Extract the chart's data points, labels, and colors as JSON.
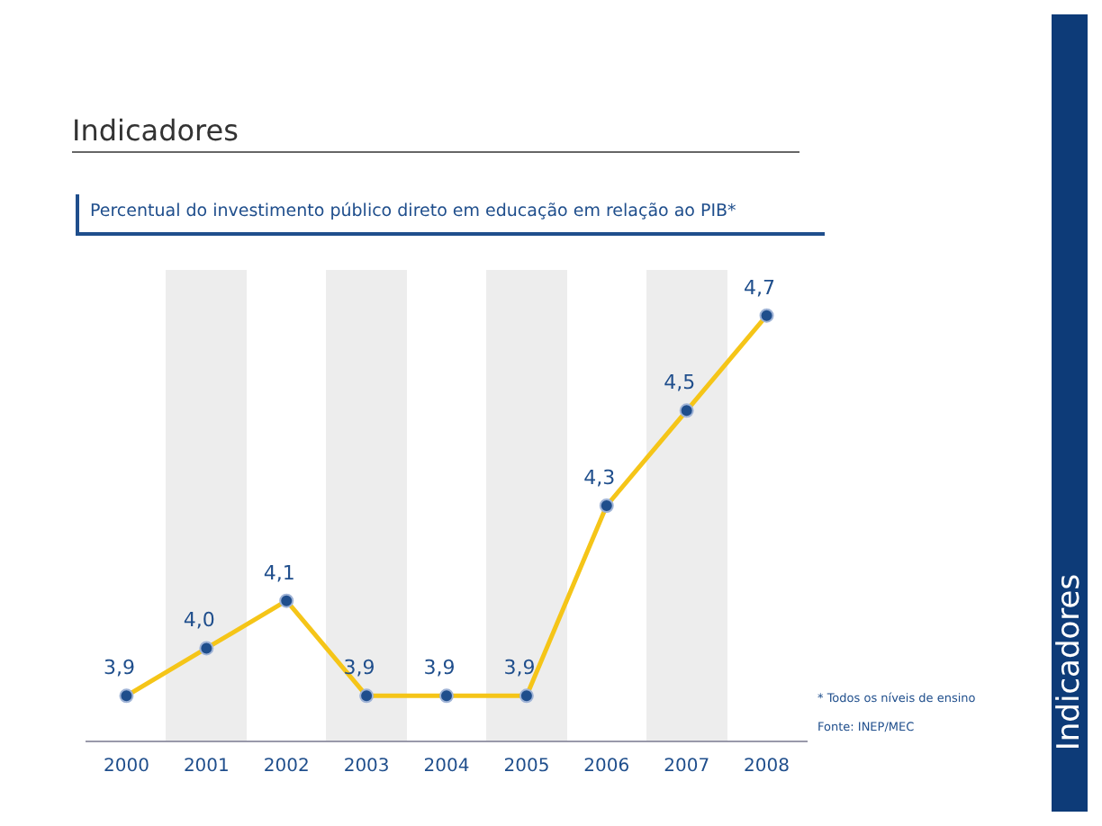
{
  "chart_data": {
    "type": "line",
    "title": "Indicadores",
    "subtitle": "Percentual do investimento público direto em educação em relação ao PIB*",
    "categories": [
      "2000",
      "2001",
      "2002",
      "2003",
      "2004",
      "2005",
      "2006",
      "2007",
      "2008"
    ],
    "series": [
      {
        "color": "#f5c518",
        "values": [
          3.9,
          4.0,
          4.1,
          3.9,
          3.9,
          3.9,
          4.3,
          4.5,
          4.7
        ],
        "value_labels": [
          "3,9",
          "4,0",
          "4,1",
          "3,9",
          "3,9",
          "3,9",
          "4,3",
          "4,5",
          "4,7"
        ]
      }
    ],
    "marker": "circle",
    "grid": false,
    "legend": false,
    "annotations": [
      "* Todos os níveis de ensino",
      "Fonte: INEP/MEC",
      "Indicadores"
    ]
  }
}
